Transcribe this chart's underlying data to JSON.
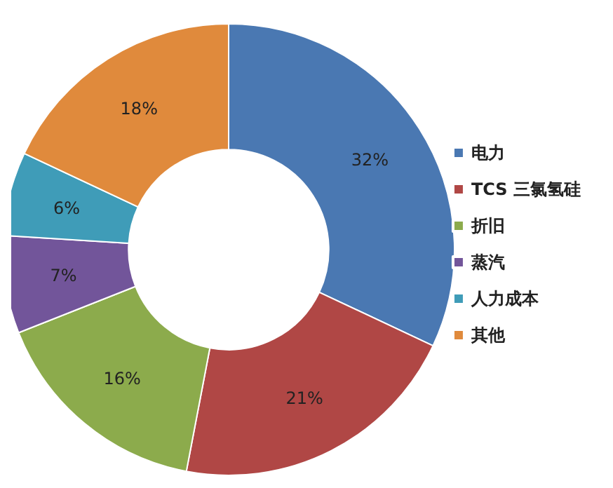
{
  "chart_data": {
    "type": "donut",
    "categories": [
      "电力",
      "TCS 三氯氢硅",
      "折旧",
      "蒸汽",
      "人力成本",
      "其他"
    ],
    "values": [
      32,
      21,
      16,
      7,
      6,
      18
    ],
    "colors": [
      "#4a78b2",
      "#b04745",
      "#8cab4c",
      "#72559a",
      "#3f9cb8",
      "#e08a3c"
    ],
    "value_labels": [
      "32%",
      "21%",
      "16%",
      "7%",
      "6%",
      "18%"
    ],
    "legend": "right"
  }
}
